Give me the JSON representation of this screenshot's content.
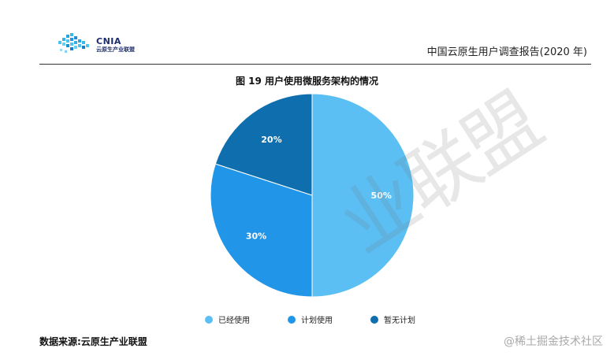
{
  "header": {
    "logo_name": "CNIA",
    "logo_subtitle": "云原生产业联盟",
    "report_title": "中国云原生用户调查报告(2020 年)"
  },
  "chart_data": {
    "type": "pie",
    "title": "图 19 用户使用微服务架构的情况",
    "slices": [
      {
        "label": "已经使用",
        "value": 50,
        "display": "50%",
        "color": "#5bbff4"
      },
      {
        "label": "计划使用",
        "value": 30,
        "display": "30%",
        "color": "#2196e9"
      },
      {
        "label": "暂无计划",
        "value": 20,
        "display": "20%",
        "color": "#0f6fae"
      }
    ],
    "legend_position": "bottom"
  },
  "source": "数据来源:云原生产业联盟",
  "watermarks": {
    "diagonal": "业联盟",
    "corner": "@稀土掘金技术社区"
  }
}
